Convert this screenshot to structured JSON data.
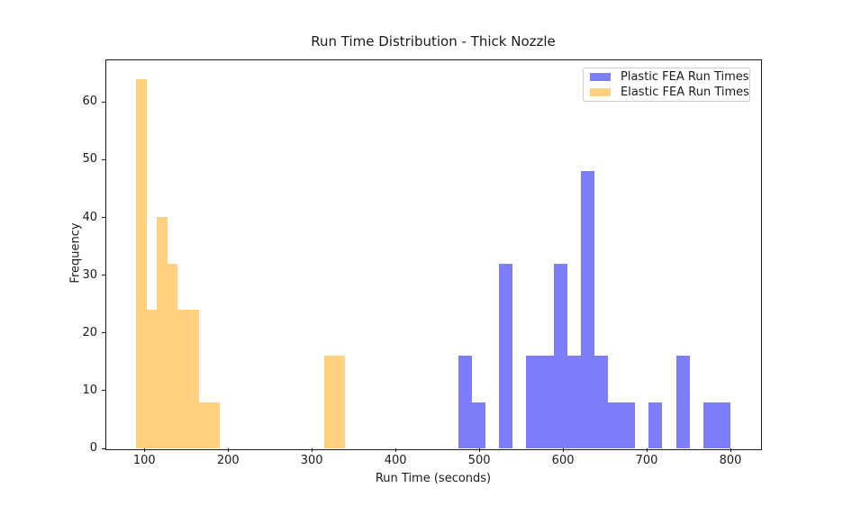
{
  "title": "Run Time Distribution - Thick Nozzle",
  "axes": {
    "xlabel": "Run Time (seconds)",
    "ylabel": "Frequency",
    "xlim": [
      54.5,
      835.5
    ],
    "ylim": [
      0,
      67.2
    ],
    "xticks": [
      100,
      200,
      300,
      400,
      500,
      600,
      700,
      800
    ],
    "yticks": [
      0,
      10,
      20,
      30,
      40,
      50,
      60
    ],
    "grid": false
  },
  "legend": {
    "position": "upper right",
    "entries": [
      {
        "label": "Plastic FEA Run Times",
        "color": "#7d7dfa"
      },
      {
        "label": "Elastic FEA Run Times",
        "color": "#ffd07e"
      }
    ]
  },
  "chart_data": {
    "type": "bar",
    "subtype": "histogram",
    "title": "Run Time Distribution - Thick Nozzle",
    "xlabel": "Run Time (seconds)",
    "ylabel": "Frequency",
    "xlim": [
      54.5,
      835.5
    ],
    "ylim": [
      0,
      67.2
    ],
    "legend_position": "upper right",
    "series": [
      {
        "name": "Plastic FEA Run Times",
        "color": "#7d7dfa",
        "bin_start": 475,
        "bin_width": 16.25,
        "counts": [
          16,
          8,
          0,
          32,
          0,
          16,
          16,
          32,
          16,
          48,
          16,
          8,
          8,
          0,
          8,
          0,
          16,
          0,
          8,
          8
        ]
      },
      {
        "name": "Elastic FEA Run Times",
        "color": "#ffd07e",
        "bin_start": 90,
        "bin_width": 12.5,
        "counts": [
          64,
          24,
          40,
          32,
          24,
          24,
          8,
          8,
          0,
          0,
          0,
          0,
          0,
          0,
          0,
          0,
          0,
          0,
          16,
          16
        ]
      }
    ]
  }
}
